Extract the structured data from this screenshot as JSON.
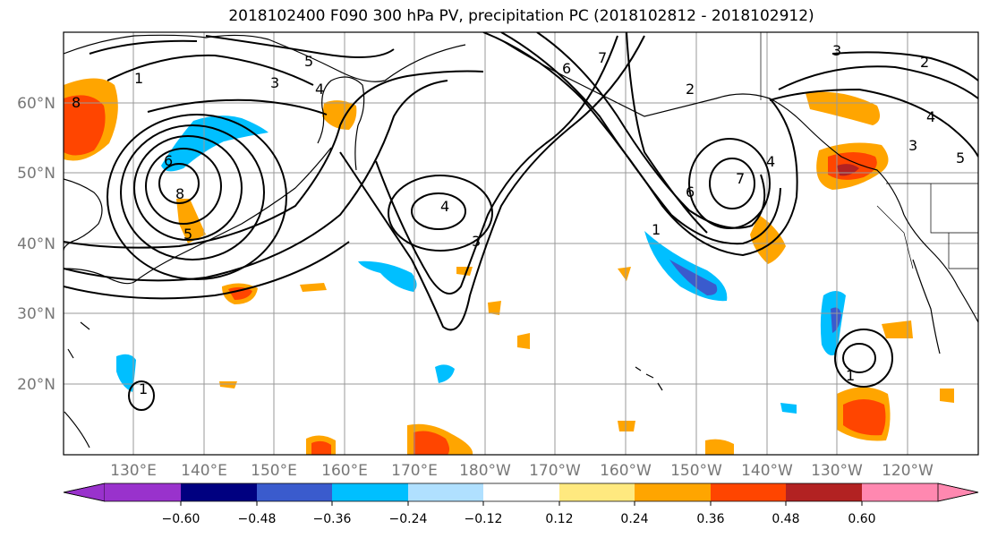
{
  "title": "2018102400 F090 300 hPa PV, precipitation PC (2018102812 - 2018102912)",
  "map": {
    "lat_labels": [
      "20°N",
      "30°N",
      "40°N",
      "50°N",
      "60°N"
    ],
    "lon_labels": [
      "130°E",
      "140°E",
      "150°E",
      "160°E",
      "170°E",
      "180°W",
      "170°W",
      "160°W",
      "150°W",
      "140°W",
      "130°W",
      "120°W"
    ],
    "contour_labels": [
      "1",
      "1",
      "1",
      "1",
      "2",
      "2",
      "3",
      "3",
      "3",
      "3",
      "4",
      "4",
      "4",
      "4",
      "5",
      "5",
      "5",
      "6",
      "6",
      "6",
      "7",
      "7",
      "8",
      "8"
    ],
    "gridline_color": "#999999"
  },
  "colorbar": {
    "tick_labels": [
      "−0.60",
      "−0.48",
      "−0.36",
      "−0.24",
      "−0.12",
      "0.12",
      "0.24",
      "0.36",
      "0.48",
      "0.60"
    ],
    "colors": [
      "#9932cc",
      "#000080",
      "#3a5bcd",
      "#00bfff",
      "#b0e0ff",
      "#ffffff",
      "#ffe97f",
      "#ffa500",
      "#ff4500",
      "#b22222",
      "#ff88b0"
    ],
    "under_color": "#9932cc",
    "over_color": "#ff88b0"
  }
}
